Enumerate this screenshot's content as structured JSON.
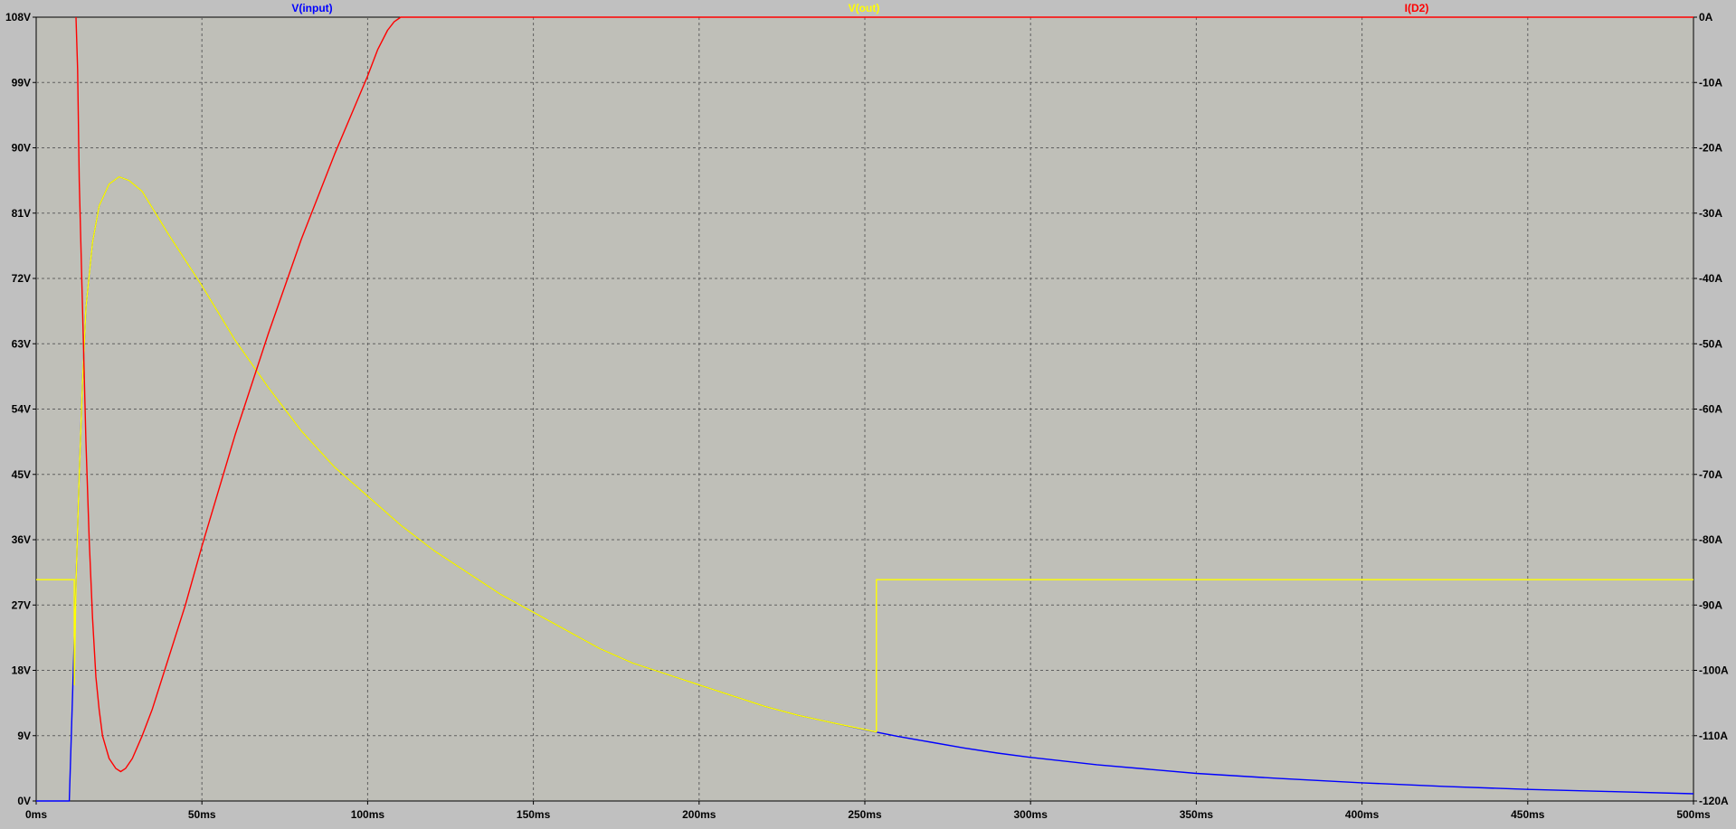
{
  "chart_data": {
    "type": "line",
    "title": "",
    "xlabel": "",
    "ylabel": "",
    "xlim": [
      0,
      500
    ],
    "ylim_left": [
      0,
      108
    ],
    "ylim_right": [
      -120,
      0
    ],
    "grid": true,
    "legend_placement": "top",
    "x_ticks": [
      "0ms",
      "50ms",
      "100ms",
      "150ms",
      "200ms",
      "250ms",
      "300ms",
      "350ms",
      "400ms",
      "450ms",
      "500ms"
    ],
    "y_ticks_left": [
      "0V",
      "9V",
      "18V",
      "27V",
      "36V",
      "45V",
      "54V",
      "63V",
      "72V",
      "81V",
      "90V",
      "99V",
      "108V"
    ],
    "y_ticks_right": [
      "-120A",
      "-110A",
      "-100A",
      "-90A",
      "-80A",
      "-70A",
      "-60A",
      "-50A",
      "-40A",
      "-30A",
      "-20A",
      "-10A",
      "0A"
    ],
    "background_color": "#c0c0c0",
    "plot_background_color": "#bfbfb8",
    "series": [
      {
        "name": "V(input)",
        "axis": "left",
        "color": "#0000ff",
        "points": [
          [
            0,
            0
          ],
          [
            10,
            0
          ],
          [
            11,
            15
          ],
          [
            12,
            30
          ],
          [
            13,
            45
          ],
          [
            14,
            58
          ],
          [
            15,
            68
          ],
          [
            17,
            77
          ],
          [
            19,
            82
          ],
          [
            22,
            85
          ],
          [
            25,
            86
          ],
          [
            28,
            85.5
          ],
          [
            32,
            84
          ],
          [
            36,
            81
          ],
          [
            40,
            78
          ],
          [
            45,
            74.5
          ],
          [
            50,
            71
          ],
          [
            60,
            63.5
          ],
          [
            70,
            57
          ],
          [
            80,
            51
          ],
          [
            90,
            46
          ],
          [
            100,
            42
          ],
          [
            110,
            38
          ],
          [
            120,
            34.5
          ],
          [
            130,
            31.5
          ],
          [
            140,
            28.5
          ],
          [
            150,
            26
          ],
          [
            160,
            23.5
          ],
          [
            170,
            21
          ],
          [
            180,
            19
          ],
          [
            190,
            17.5
          ],
          [
            200,
            16
          ],
          [
            210,
            14.5
          ],
          [
            220,
            13
          ],
          [
            230,
            11.8
          ],
          [
            240,
            10.8
          ],
          [
            250,
            9.8
          ],
          [
            260,
            8.9
          ],
          [
            270,
            8.1
          ],
          [
            280,
            7.3
          ],
          [
            290,
            6.6
          ],
          [
            300,
            6
          ],
          [
            320,
            5
          ],
          [
            340,
            4.2
          ],
          [
            350,
            3.8
          ],
          [
            375,
            3.1
          ],
          [
            400,
            2.5
          ],
          [
            425,
            2
          ],
          [
            450,
            1.6
          ],
          [
            475,
            1.3
          ],
          [
            500,
            1
          ]
        ]
      },
      {
        "name": "V(out)",
        "axis": "left",
        "color": "#ffff00",
        "points": [
          [
            0,
            30.5
          ],
          [
            11.5,
            30.5
          ],
          [
            11.5,
            16
          ],
          [
            12,
            30
          ],
          [
            13,
            45
          ],
          [
            14,
            58
          ],
          [
            15,
            68
          ],
          [
            17,
            77
          ],
          [
            19,
            82
          ],
          [
            22,
            85
          ],
          [
            25,
            86
          ],
          [
            28,
            85.5
          ],
          [
            32,
            84
          ],
          [
            36,
            81
          ],
          [
            40,
            78
          ],
          [
            45,
            74.5
          ],
          [
            50,
            71
          ],
          [
            60,
            63.5
          ],
          [
            70,
            57
          ],
          [
            80,
            51
          ],
          [
            90,
            46
          ],
          [
            100,
            42
          ],
          [
            110,
            38
          ],
          [
            120,
            34.5
          ],
          [
            130,
            31.5
          ],
          [
            140,
            28.5
          ],
          [
            150,
            26
          ],
          [
            160,
            23.5
          ],
          [
            170,
            21
          ],
          [
            180,
            19
          ],
          [
            190,
            17.5
          ],
          [
            200,
            16
          ],
          [
            210,
            14.5
          ],
          [
            220,
            13
          ],
          [
            230,
            11.8
          ],
          [
            240,
            10.8
          ],
          [
            253.5,
            9.5
          ],
          [
            253.5,
            30.5
          ],
          [
            500,
            30.5
          ]
        ]
      },
      {
        "name": "I(D2)",
        "axis": "right",
        "color": "#ff0000",
        "points": [
          [
            12,
            0
          ],
          [
            12.5,
            -8
          ],
          [
            13,
            -25
          ],
          [
            14,
            -45
          ],
          [
            15,
            -65
          ],
          [
            16,
            -80
          ],
          [
            17,
            -92
          ],
          [
            18,
            -101
          ],
          [
            19,
            -106
          ],
          [
            20,
            -110
          ],
          [
            22,
            -113.5
          ],
          [
            24,
            -115
          ],
          [
            25.5,
            -115.5
          ],
          [
            27,
            -115
          ],
          [
            29,
            -113.5
          ],
          [
            32,
            -110
          ],
          [
            35,
            -106
          ],
          [
            40,
            -98
          ],
          [
            45,
            -90
          ],
          [
            50,
            -81
          ],
          [
            60,
            -64
          ],
          [
            70,
            -48.5
          ],
          [
            80,
            -34
          ],
          [
            90,
            -21
          ],
          [
            95,
            -15
          ],
          [
            100,
            -9
          ],
          [
            103,
            -5
          ],
          [
            106,
            -2
          ],
          [
            108,
            -0.7
          ],
          [
            110,
            0
          ],
          [
            500,
            0
          ]
        ]
      }
    ]
  }
}
